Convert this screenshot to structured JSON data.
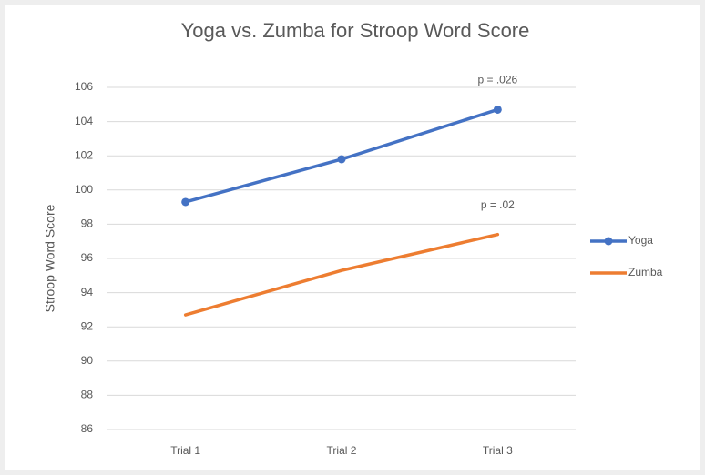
{
  "chart_data": {
    "type": "line",
    "title": "Yoga vs. Zumba for Stroop Word Score",
    "y_label": "Stroop Word Score",
    "categories": [
      "Trial 1",
      "Trial 2",
      "Trial 3"
    ],
    "series": [
      {
        "name": "Yoga",
        "color": "#4472c4",
        "marker": true,
        "values": [
          99.3,
          101.8,
          104.7
        ],
        "annotation": "p = .026"
      },
      {
        "name": "Zumba",
        "color": "#ed7d31",
        "marker": false,
        "values": [
          92.7,
          95.3,
          97.4
        ],
        "annotation": "p = .02"
      }
    ],
    "ylim": [
      86,
      106
    ],
    "yticks": [
      86,
      88,
      90,
      92,
      94,
      96,
      98,
      100,
      102,
      104,
      106
    ],
    "grid": true,
    "legend": "right"
  }
}
